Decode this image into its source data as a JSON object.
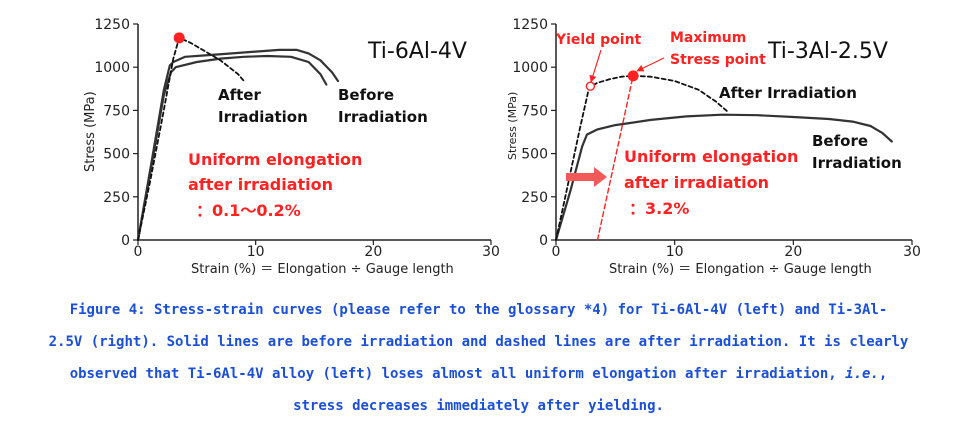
{
  "colors": {
    "axis": "#222222",
    "curve": "#333333",
    "highlight": "#ff2222",
    "caption": "#1a4fd6"
  },
  "chart_data": [
    {
      "type": "line",
      "title": "Ti-6Al-4V",
      "xlabel": "Strain (%) ＝ Elongation ÷ Gauge length",
      "ylabel": "Stress (MPa)",
      "xlim": [
        0,
        30
      ],
      "ylim": [
        0,
        1250
      ],
      "xticks": [
        0,
        10,
        20,
        30
      ],
      "yticks": [
        0,
        250,
        500,
        750,
        1000,
        1250
      ],
      "grid": false,
      "series": [
        {
          "name": "Before irradiation",
          "style": "solid",
          "x": [
            0,
            1.2,
            2.2,
            2.7,
            3.0,
            4,
            6,
            8,
            10,
            12,
            13.5,
            14.5,
            15.5,
            16.5,
            17
          ],
          "y": [
            0,
            470,
            870,
            1010,
            1030,
            1060,
            1070,
            1080,
            1090,
            1100,
            1100,
            1080,
            1040,
            970,
            920
          ]
        },
        {
          "name": "Before irradiation (second curve)",
          "style": "solid",
          "x": [
            0,
            1.2,
            2.2,
            2.8,
            3.2,
            5,
            7,
            9,
            11,
            13,
            14.5,
            15.5,
            16
          ],
          "y": [
            0,
            450,
            840,
            970,
            1000,
            1030,
            1050,
            1060,
            1065,
            1060,
            1030,
            960,
            900
          ]
        },
        {
          "name": "After irradiation",
          "style": "dashed",
          "x": [
            0,
            1,
            2,
            3,
            3.5,
            4.5,
            5.5,
            7,
            8.5,
            9
          ],
          "y": [
            0,
            330,
            680,
            1050,
            1170,
            1140,
            1100,
            1040,
            960,
            920
          ]
        }
      ],
      "markers": [
        {
          "label": "Maximum stress",
          "x": 3.5,
          "y": 1170
        }
      ],
      "annotations": {
        "after": [
          "After",
          "Irradiation"
        ],
        "before": [
          "Before",
          "Irradiation"
        ],
        "uniform": [
          "Uniform elongation",
          "after irradiation",
          "：0.1～0.2%"
        ]
      }
    },
    {
      "type": "line",
      "title": "Ti-3Al-2.5V",
      "xlabel": "Strain (%) ＝ Elongation ÷ Gauge length",
      "ylabel": "Stress (MPa)",
      "xlim": [
        0,
        30
      ],
      "ylim": [
        0,
        1250
      ],
      "xticks": [
        0,
        10,
        20,
        30
      ],
      "yticks": [
        0,
        250,
        500,
        750,
        1000,
        1250
      ],
      "grid": false,
      "series": [
        {
          "name": "Before irradiation",
          "style": "solid",
          "x": [
            0,
            1.2,
            2.2,
            2.6,
            3.5,
            5,
            8,
            11,
            14,
            17,
            20,
            23,
            25,
            26.5,
            27.5,
            28.3
          ],
          "y": [
            0,
            280,
            540,
            610,
            640,
            665,
            695,
            715,
            725,
            722,
            712,
            700,
            685,
            660,
            620,
            570
          ]
        },
        {
          "name": "After irradiation",
          "style": "dashed",
          "x": [
            0,
            1,
            2,
            2.8,
            3.5,
            4.5,
            5.5,
            6.5,
            8,
            10,
            12,
            13.5,
            14.5
          ],
          "y": [
            0,
            320,
            640,
            885,
            910,
            930,
            945,
            950,
            945,
            920,
            870,
            800,
            740
          ]
        },
        {
          "name": "Uniform elongation line",
          "style": "dashed-red",
          "x": [
            3.5,
            6.5
          ],
          "y": [
            0,
            950
          ]
        }
      ],
      "markers": [
        {
          "label": "Yield point",
          "x": 2.9,
          "y": 890,
          "style": "open"
        },
        {
          "label": "Maximum Stress point",
          "x": 6.5,
          "y": 950,
          "style": "filled"
        }
      ],
      "annotations": {
        "yield": "Yield point",
        "maximum": [
          "Maximum",
          "Stress point"
        ],
        "after": "After Irradiation",
        "before": [
          "Before",
          "Irradiation"
        ],
        "uniform": [
          "Uniform elongation",
          "after irradiation",
          "：3.2%"
        ]
      }
    }
  ],
  "caption": {
    "line1": "Figure 4: Stress-strain curves (please refer to the glossary *4) for Ti-6Al-4V (left) and Ti-3Al-",
    "line2": "2.5V (right). Solid lines are before irradiation and dashed lines are after irradiation. It is clearly",
    "line3a": "observed that Ti-6Al-4V alloy (left) loses almost all uniform elongation after irradiation,",
    "line3b": "i.e.",
    "line3c": ",",
    "line4": "stress decreases immediately after yielding."
  }
}
